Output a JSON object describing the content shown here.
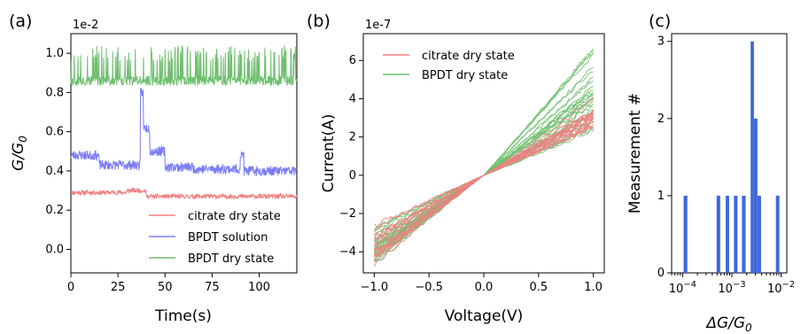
{
  "chart_data": [
    {
      "type": "line",
      "panel_label": "(a)",
      "title": "",
      "xlabel": "Time(s)",
      "ylabel_base": "G/G",
      "ylabel_sub": "0",
      "offset_text": "1e-2",
      "xlim": [
        0,
        120
      ],
      "ylim": [
        -0.12,
        1.1
      ],
      "xticks": [
        0,
        25,
        50,
        75,
        100
      ],
      "xtick_labels": [
        "0",
        "25",
        "50",
        "75",
        "100"
      ],
      "yticks": [
        0.0,
        0.2,
        0.4,
        0.6,
        0.8,
        1.0
      ],
      "ytick_labels": [
        "0.0",
        "0.2",
        "0.4",
        "0.6",
        "0.8",
        "1.0"
      ],
      "grid": false,
      "legend_position": "lower-right",
      "series": [
        {
          "name": "citrate dry state",
          "color": "#f08080",
          "base": 0.28,
          "noise": 0.012,
          "seed": 11,
          "segments": [
            [
              0,
              30,
              0.29
            ],
            [
              30,
              40,
              0.3
            ],
            [
              40,
              60,
              0.27
            ],
            [
              60,
              120,
              0.27
            ]
          ]
        },
        {
          "name": "BPDT solution",
          "color": "#7b7bf5",
          "base": 0.45,
          "noise": 0.025,
          "seed": 23,
          "segments": [
            [
              0,
              15,
              0.48
            ],
            [
              15,
              37,
              0.43
            ],
            [
              37,
              38.5,
              0.8
            ],
            [
              38.5,
              42,
              0.62
            ],
            [
              42,
              50,
              0.5
            ],
            [
              50,
              65,
              0.42
            ],
            [
              65,
              90,
              0.41
            ],
            [
              90,
              92,
              0.48
            ],
            [
              92,
              120,
              0.4
            ]
          ]
        },
        {
          "name": "BPDT dry state",
          "color": "#6fbf6f",
          "base": 0.86,
          "noise": 0.025,
          "seed": 37,
          "segments": [
            [
              0,
              120,
              0.86
            ]
          ],
          "jump_to": 1.0,
          "jump_prob": 0.18
        }
      ]
    },
    {
      "type": "line",
      "panel_label": "(b)",
      "title": "",
      "xlabel": "Voltage(V)",
      "ylabel": "Current(A)",
      "offset_text": "1e-7",
      "xlim": [
        -1.1,
        1.1
      ],
      "ylim": [
        -5.1,
        7.4
      ],
      "xticks": [
        -1.0,
        -0.5,
        0.0,
        0.5,
        1.0
      ],
      "xtick_labels": [
        "−1.0",
        "−0.5",
        "0.0",
        "0.5",
        "1.0"
      ],
      "yticks": [
        -4,
        -2,
        0,
        2,
        4,
        6
      ],
      "ytick_labels": [
        "−4",
        "−2",
        "0",
        "2",
        "4",
        "6"
      ],
      "grid": false,
      "legend_position": "top-left",
      "series": [
        {
          "name": "citrate dry state",
          "color": "#f08080",
          "n_curves": 18,
          "slope_range": [
            2.4,
            3.6
          ],
          "seed": 5
        },
        {
          "name": "BPDT dry state",
          "color": "#6fbf6f",
          "n_curves": 30,
          "slope_range": [
            2.2,
            6.6
          ],
          "seed": 9
        }
      ]
    },
    {
      "type": "bar",
      "panel_label": "(c)",
      "title": "",
      "xlabel_base": "ΔG/G",
      "xlabel_sub": "0",
      "ylabel": "Measurement #",
      "xscale": "log",
      "xlim": [
        6e-05,
        0.013
      ],
      "ylim": [
        0,
        3.1
      ],
      "xticks_exp": [
        -4,
        -3,
        -2
      ],
      "yticks": [
        0,
        1,
        2,
        3
      ],
      "ytick_labels": [
        "0",
        "1",
        "2",
        "3"
      ],
      "grid": false,
      "bar_color": "#3f68d8",
      "bars": [
        {
          "x0": 0.000105,
          "x1": 0.000125,
          "count": 1
        },
        {
          "x0": 0.00049,
          "x1": 0.00058,
          "count": 1
        },
        {
          "x0": 0.00075,
          "x1": 0.00088,
          "count": 1
        },
        {
          "x0": 0.0011,
          "x1": 0.0013,
          "count": 1
        },
        {
          "x0": 0.0016,
          "x1": 0.0019,
          "count": 1
        },
        {
          "x0": 0.0024,
          "x1": 0.0028,
          "count": 3
        },
        {
          "x0": 0.0028,
          "x1": 0.0033,
          "count": 2
        },
        {
          "x0": 0.0033,
          "x1": 0.0039,
          "count": 1
        },
        {
          "x0": 0.0078,
          "x1": 0.0092,
          "count": 1
        }
      ]
    }
  ]
}
